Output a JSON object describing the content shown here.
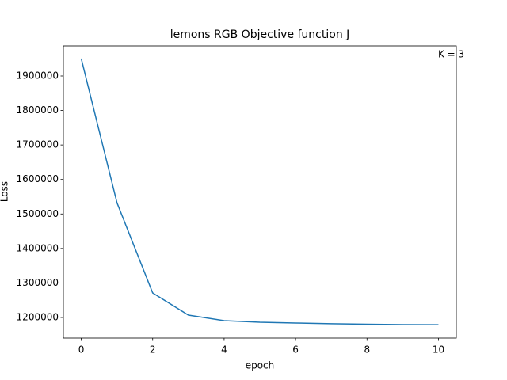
{
  "chart_data": {
    "type": "line",
    "title": "lemons RGB Objective function J",
    "x_label": "epoch",
    "y_label": "Loss",
    "annotation": "K = 3",
    "x": [
      0,
      1,
      2,
      3,
      4,
      5,
      6,
      7,
      8,
      9,
      10
    ],
    "series": [
      {
        "name": "J",
        "color": "#1f77b4",
        "values": [
          1950500,
          1532800,
          1271100,
          1206900,
          1190800,
          1186200,
          1184000,
          1182000,
          1180500,
          1179300,
          1179000
        ]
      }
    ],
    "xlim": [
      -0.5,
      10.5
    ],
    "xticks": [
      0,
      2,
      4,
      6,
      8,
      10
    ],
    "ylim": [
      1140300,
      1987200
    ],
    "yticks": [
      1200000,
      1300000,
      1400000,
      1500000,
      1600000,
      1700000,
      1800000,
      1900000
    ],
    "grid": false
  }
}
